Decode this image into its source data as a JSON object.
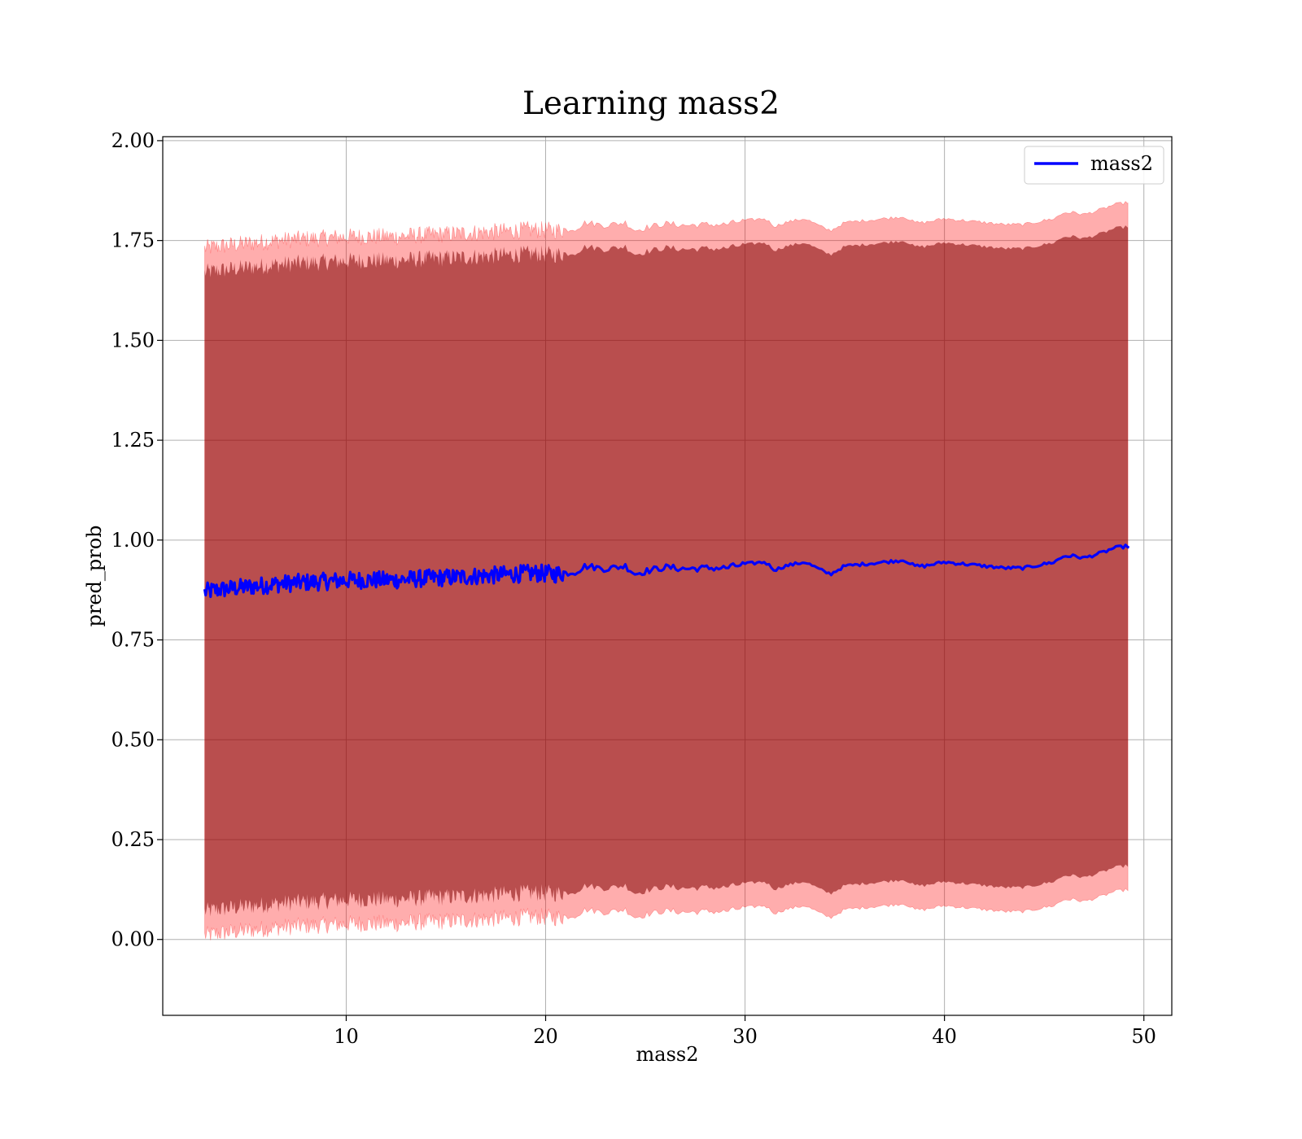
{
  "chart_data": {
    "type": "line",
    "title": "Learning mass2",
    "xlabel": "mass2",
    "ylabel": "pred_prob",
    "xlim": [
      0.8,
      51.4
    ],
    "ylim": [
      -0.19,
      2.01
    ],
    "xticks": [
      10,
      20,
      30,
      40,
      50
    ],
    "xtick_labels": [
      "10",
      "20",
      "30",
      "40",
      "50"
    ],
    "yticks": [
      0.0,
      0.25,
      0.5,
      0.75,
      1.0,
      1.25,
      1.5,
      1.75,
      2.0
    ],
    "ytick_labels": [
      "0.00",
      "0.25",
      "0.50",
      "0.75",
      "1.00",
      "1.25",
      "1.50",
      "1.75",
      "2.00"
    ],
    "grid": true,
    "legend": {
      "position": "upper right",
      "entries": [
        "mass2"
      ]
    },
    "colors": {
      "line": "#0000ff",
      "outer_band": "#ff0000",
      "inner_band": "#800000"
    },
    "series": [
      {
        "name": "mass2",
        "x": [
          2.9,
          3.5,
          4.5,
          5.5,
          6.5,
          7.5,
          8.5,
          9.5,
          10.5,
          11.5,
          12.5,
          13.5,
          14.5,
          15.5,
          16.5,
          17.5,
          18.5,
          19.5,
          20.5,
          21.5,
          22.0,
          23.0,
          24.0,
          24.5,
          25.0,
          26.0,
          27.0,
          28.0,
          29.0,
          30.0,
          31.0,
          31.5,
          32.0,
          33.0,
          34.0,
          34.3,
          35.0,
          36.0,
          37.0,
          38.0,
          38.5,
          39.0,
          40.0,
          41.0,
          42.0,
          43.0,
          44.0,
          45.0,
          45.5,
          46.0,
          46.5,
          47.0,
          48.0,
          48.5,
          49.2
        ],
        "y": [
          0.87,
          0.875,
          0.88,
          0.885,
          0.89,
          0.893,
          0.895,
          0.898,
          0.9,
          0.9,
          0.9,
          0.903,
          0.905,
          0.907,
          0.91,
          0.912,
          0.915,
          0.917,
          0.915,
          0.92,
          0.935,
          0.928,
          0.935,
          0.915,
          0.922,
          0.932,
          0.928,
          0.93,
          0.93,
          0.94,
          0.945,
          0.925,
          0.935,
          0.945,
          0.92,
          0.915,
          0.935,
          0.94,
          0.945,
          0.95,
          0.935,
          0.935,
          0.945,
          0.94,
          0.935,
          0.93,
          0.93,
          0.94,
          0.945,
          0.96,
          0.96,
          0.955,
          0.97,
          0.98,
          0.985
        ],
        "outer_band_std": 0.86,
        "inner_band_std": 0.8
      }
    ]
  }
}
